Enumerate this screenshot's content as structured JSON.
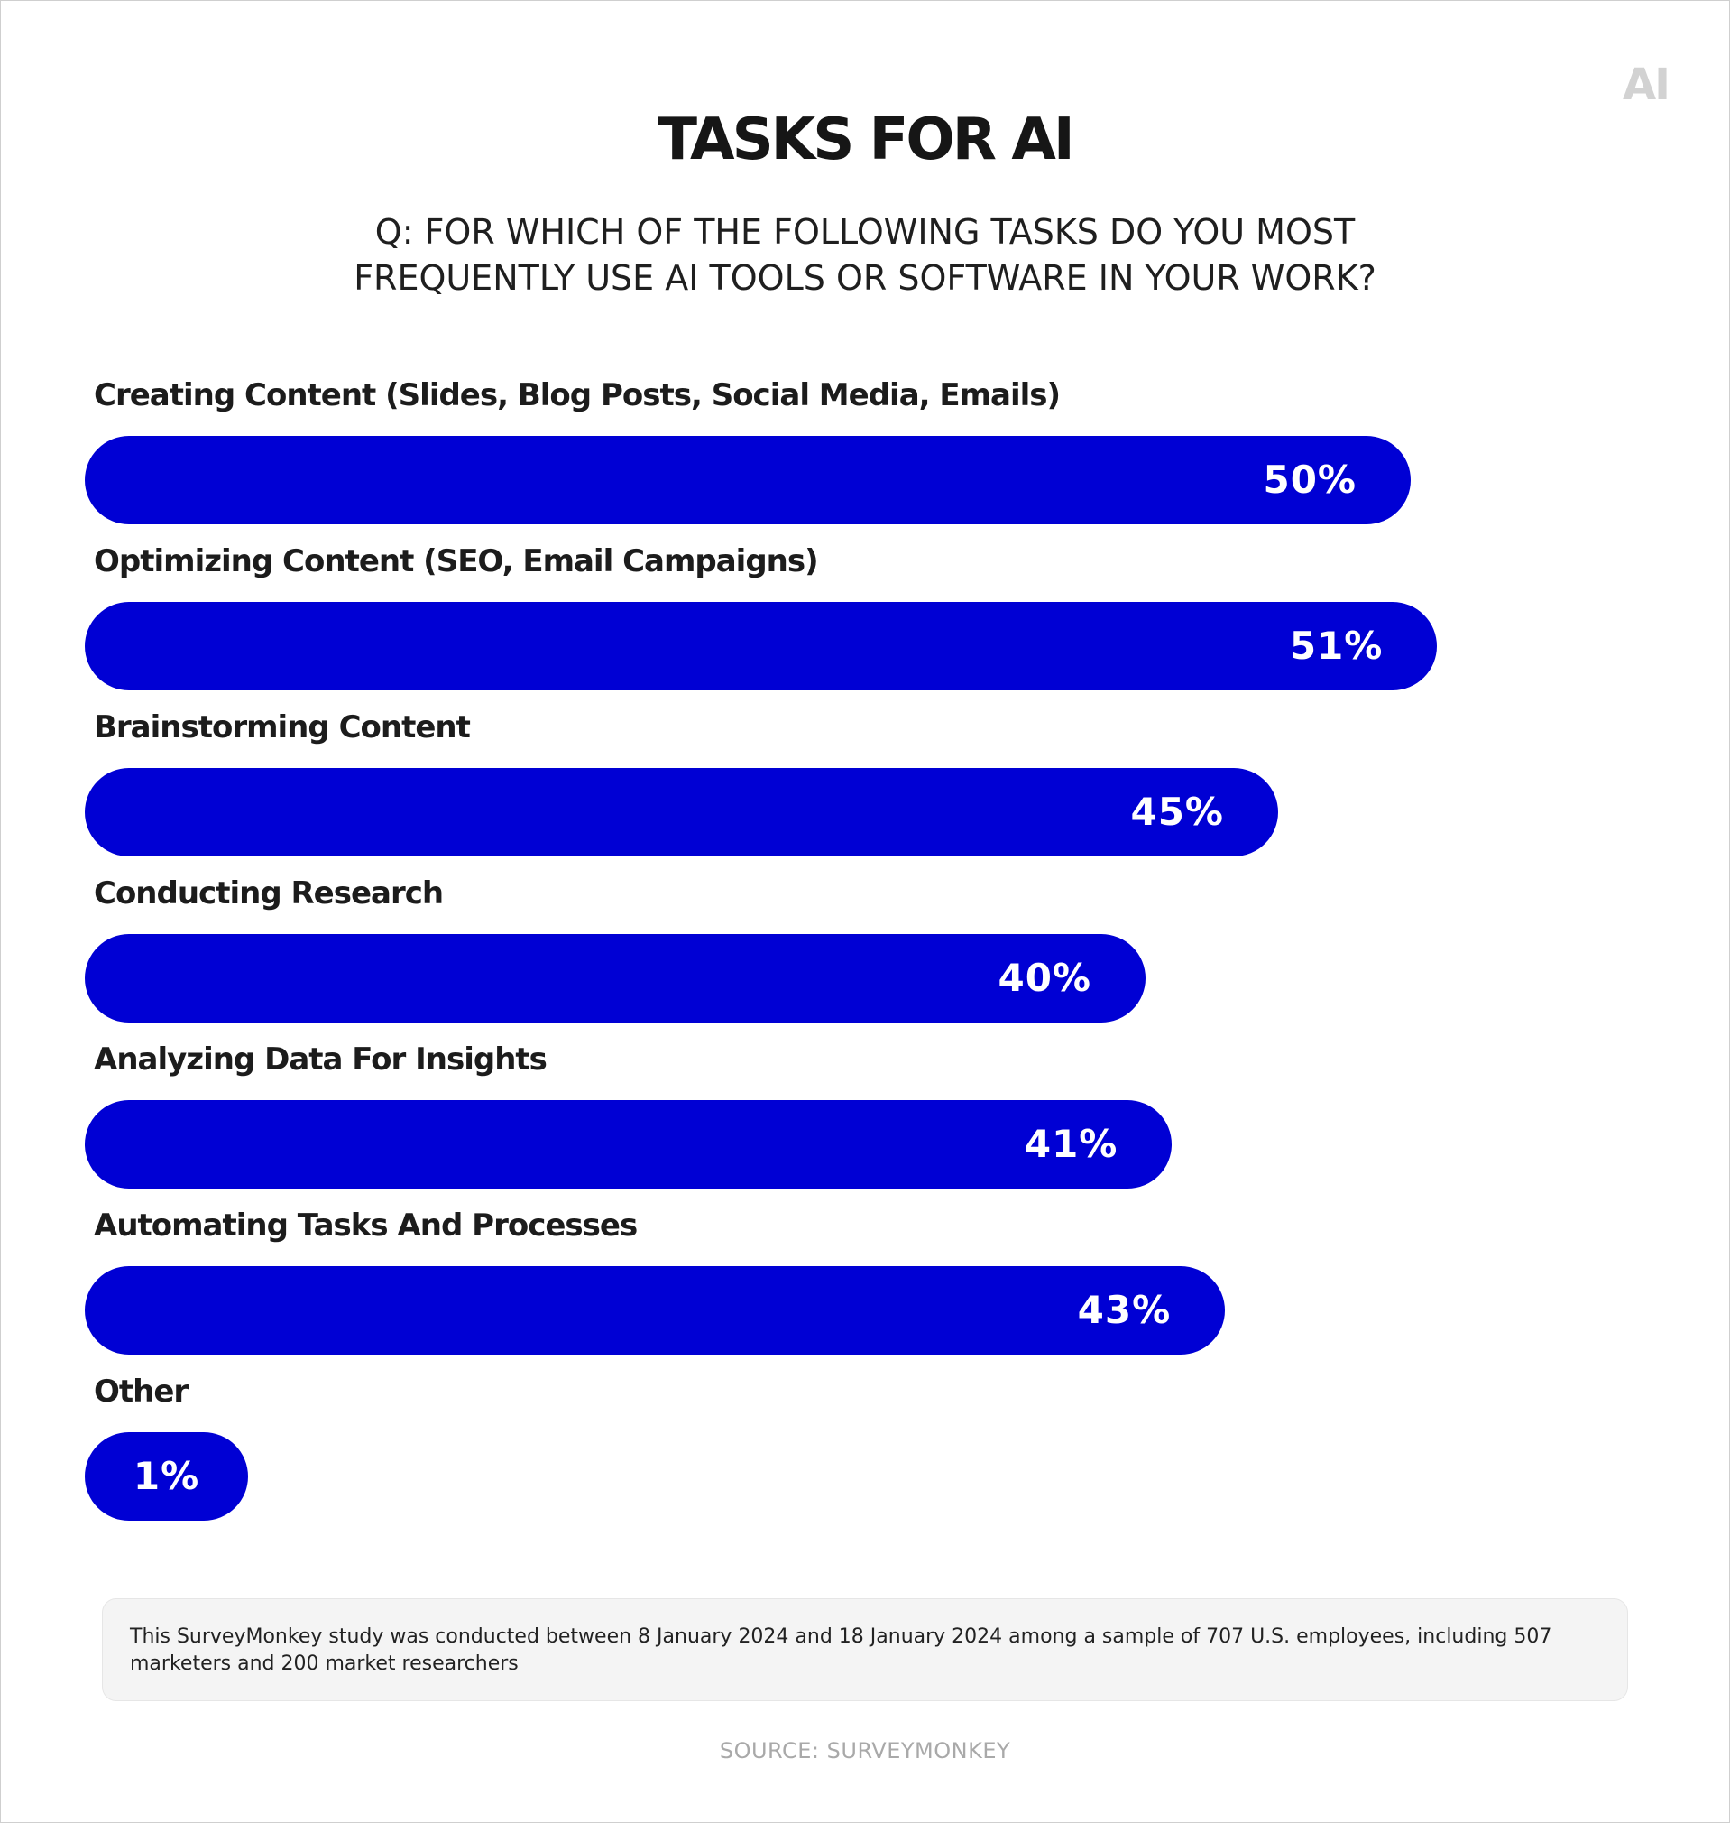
{
  "logo": "AI",
  "chart_data": {
    "type": "bar",
    "orientation": "horizontal",
    "title": "TASKS FOR AI",
    "subtitle": "Q: FOR WHICH OF THE FOLLOWING TASKS DO YOU MOST FREQUENTLY USE AI TOOLS OR SOFTWARE IN YOUR WORK?",
    "subtitle_lines": [
      "Q: FOR WHICH OF THE FOLLOWING TASKS DO YOU MOST",
      "FREQUENTLY USE AI TOOLS OR SOFTWARE IN YOUR WORK?"
    ],
    "categories": [
      "Creating Content (Slides, Blog Posts, Social Media, Emails)",
      "Optimizing Content (SEO, Email Campaigns)",
      "Brainstorming Content",
      "Conducting Research",
      "Analyzing Data For Insights",
      "Automating Tasks And Processes",
      "Other"
    ],
    "values": [
      50,
      51,
      45,
      40,
      41,
      43,
      1
    ],
    "value_labels": [
      "50%",
      "51%",
      "45%",
      "40%",
      "41%",
      "43%",
      "1%"
    ],
    "unit": "%",
    "bar_color": "#0000d4",
    "grid": false,
    "legend": "none"
  },
  "note": "This SurveyMonkey study was conducted between 8 January 2024 and 18 January 2024 among a sample of 707 U.S. employees, including 507 marketers and 200 market researchers",
  "source": "SOURCE: SURVEYMONKEY"
}
